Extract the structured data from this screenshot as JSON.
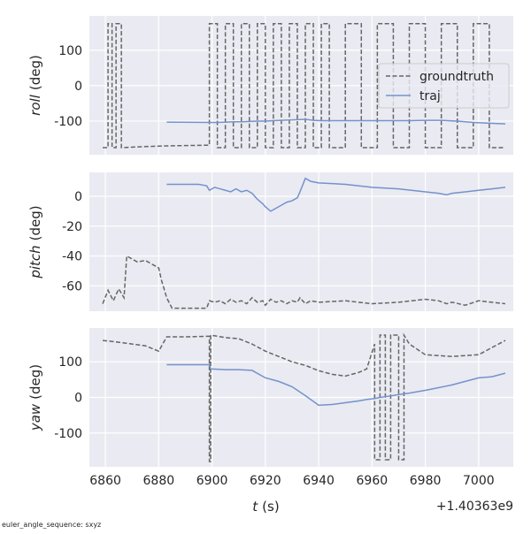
{
  "chart_data": [
    {
      "type": "line",
      "ylabel_var": "roll",
      "ylabel_unit": "(deg)",
      "grid": true,
      "legend": "upper right",
      "xlim": [
        6854,
        7013
      ],
      "xticks": [
        6860,
        6880,
        6900,
        6920,
        6940,
        6960,
        6980,
        7000
      ],
      "ylim": [
        -195,
        197
      ],
      "yticks": [
        -100,
        0,
        100
      ],
      "x": [
        6859,
        6861,
        6861,
        6862.5,
        6862.5,
        6864,
        6864,
        6866,
        6866,
        6875,
        6883,
        6899,
        6899,
        6902,
        6902,
        6905,
        6905,
        6908,
        6908,
        6911,
        6911,
        6914,
        6914,
        6917,
        6917,
        6920,
        6920,
        6923,
        6923,
        6926,
        6926,
        6929,
        6929,
        6932,
        6932,
        6935,
        6935,
        6938,
        6938,
        6941,
        6941,
        6944,
        6944,
        6950,
        6950,
        6956,
        6956,
        6962,
        6962,
        6968,
        6968,
        6974,
        6974,
        6980,
        6980,
        6986,
        6986,
        6992,
        6992,
        6998,
        6998,
        7004,
        7004,
        7010
      ],
      "series": [
        {
          "name": "groundtruth",
          "color": "#666666",
          "dash": true,
          "values": [
            -175,
            -175,
            175,
            175,
            -175,
            -175,
            175,
            175,
            -175,
            -172,
            -170,
            -168,
            175,
            175,
            -175,
            -175,
            175,
            175,
            -175,
            -175,
            175,
            175,
            -175,
            -175,
            175,
            175,
            -175,
            -175,
            175,
            175,
            -175,
            -175,
            175,
            175,
            -175,
            -175,
            175,
            175,
            -175,
            -175,
            175,
            175,
            -175,
            -175,
            175,
            175,
            -175,
            -175,
            175,
            175,
            -175,
            -175,
            175,
            175,
            -175,
            -175,
            175,
            175,
            -175,
            -175,
            175,
            175,
            -175,
            -175
          ]
        },
        {
          "name": "traj",
          "color": "#7293cb",
          "dash": false,
          "values": [
            null,
            null,
            null,
            null,
            null,
            null,
            null,
            null,
            null,
            null,
            -103,
            -104,
            -104,
            -104,
            -104,
            -103,
            -103,
            -102,
            -102,
            -102,
            -102,
            -101,
            -101,
            -100,
            -100,
            -100,
            -100,
            -99,
            -99,
            -98,
            -98,
            -97,
            -97,
            -96,
            -96,
            -95,
            -95,
            -98,
            -98,
            -99,
            -99,
            -99,
            -99,
            -99,
            -99,
            -99,
            -99,
            -99,
            -99,
            -99,
            -99,
            -99,
            -99,
            -98,
            -98,
            -98,
            -98,
            -100,
            -100,
            -104,
            -104,
            -106,
            -106,
            -108
          ]
        }
      ]
    },
    {
      "type": "line",
      "ylabel_var": "pitch",
      "ylabel_unit": "(deg)",
      "grid": true,
      "xlim": [
        6854,
        7013
      ],
      "xticks": [
        6860,
        6880,
        6900,
        6920,
        6940,
        6960,
        6980,
        7000
      ],
      "ylim": [
        -77,
        16
      ],
      "yticks": [
        -60,
        -40,
        -20,
        0
      ],
      "x": [
        6859,
        6861,
        6863,
        6865,
        6867,
        6868,
        6870,
        6872,
        6875,
        6878,
        6880,
        6881,
        6883,
        6885,
        6890,
        6895,
        6898,
        6899,
        6901,
        6903,
        6905,
        6907,
        6909,
        6911,
        6913,
        6915,
        6917,
        6919,
        6920,
        6922,
        6924,
        6926,
        6928,
        6930,
        6932,
        6933,
        6935,
        6937,
        6940,
        6950,
        6960,
        6970,
        6980,
        6985,
        6988,
        6990,
        6995,
        7000,
        7005,
        7010
      ],
      "series": [
        {
          "name": "groundtruth",
          "color": "#666666",
          "dash": true,
          "values": [
            -72,
            -63,
            -70,
            -62,
            -68,
            -40,
            -42,
            -44,
            -43,
            -46,
            -48,
            -56,
            -68,
            -75,
            -75,
            -75,
            -75,
            -70,
            -71,
            -70,
            -72,
            -69,
            -71,
            -70,
            -72,
            -68,
            -71,
            -70,
            -73,
            -69,
            -71,
            -70,
            -72,
            -70,
            -71,
            -68,
            -72,
            -70,
            -71,
            -70,
            -72,
            -71,
            -69,
            -70,
            -72,
            -71,
            -73,
            -70,
            -71,
            -72
          ]
        },
        {
          "name": "traj",
          "color": "#7293cb",
          "dash": false,
          "values": [
            null,
            null,
            null,
            null,
            null,
            null,
            null,
            null,
            null,
            null,
            null,
            null,
            8,
            8,
            8,
            8,
            7,
            4,
            6,
            5,
            4,
            3,
            5,
            3,
            4,
            2,
            -2,
            -5,
            -7,
            -10,
            -8,
            -6,
            -4,
            -3,
            -1,
            3,
            12,
            10,
            9,
            8,
            6,
            5,
            3,
            2,
            1,
            2,
            3,
            4,
            5,
            6
          ]
        }
      ]
    },
    {
      "type": "line",
      "ylabel_var": "yaw",
      "ylabel_unit": "(deg)",
      "grid": true,
      "xlabel_var": "t",
      "xlabel_unit": "(s)",
      "x_offset": "+1.40363e9",
      "xlim": [
        6854,
        7013
      ],
      "xticks": [
        6860,
        6880,
        6900,
        6920,
        6940,
        6960,
        6980,
        7000
      ],
      "ylim": [
        -195,
        195
      ],
      "yticks": [
        -100,
        0,
        100
      ],
      "x": [
        6859,
        6865,
        6870,
        6875,
        6880,
        6883,
        6890,
        6899,
        6899,
        6899.5,
        6899.5,
        6905,
        6910,
        6915,
        6920,
        6925,
        6930,
        6935,
        6940,
        6945,
        6950,
        6955,
        6958,
        6961,
        6961,
        6963,
        6963,
        6965,
        6965,
        6967,
        6967,
        6970,
        6970,
        6972,
        6972,
        6974,
        6980,
        6990,
        7000,
        7005,
        7010
      ],
      "series": [
        {
          "name": "groundtruth",
          "color": "#666666",
          "dash": true,
          "values": [
            160,
            155,
            150,
            145,
            130,
            170,
            170,
            172,
            -180,
            -180,
            175,
            168,
            165,
            150,
            130,
            115,
            100,
            90,
            75,
            65,
            60,
            70,
            80,
            150,
            -175,
            -175,
            175,
            175,
            -175,
            -175,
            175,
            175,
            -175,
            -175,
            175,
            150,
            120,
            115,
            120,
            140,
            160
          ]
        },
        {
          "name": "traj",
          "color": "#7293cb",
          "dash": false,
          "values": [
            null,
            null,
            null,
            null,
            null,
            92,
            92,
            92,
            92,
            80,
            80,
            78,
            78,
            76,
            55,
            45,
            30,
            5,
            -22,
            -20,
            -15,
            -10,
            -6,
            -3,
            -3,
            0,
            0,
            2,
            2,
            4,
            4,
            8,
            8,
            10,
            10,
            12,
            20,
            35,
            55,
            58,
            68
          ]
        }
      ]
    }
  ],
  "footer": "euler_angle_sequence: sxyz"
}
